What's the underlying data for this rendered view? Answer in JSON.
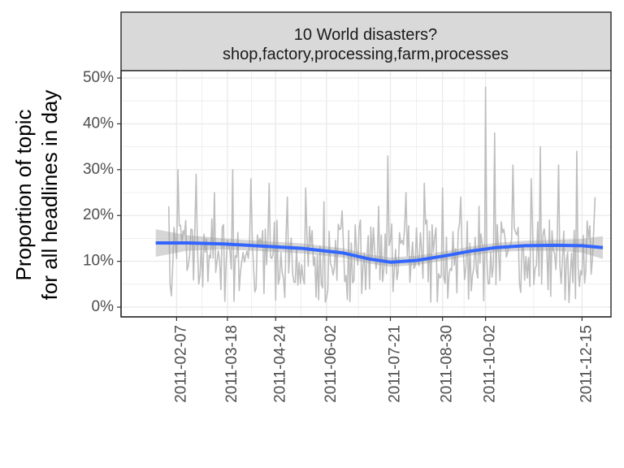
{
  "chart_data": {
    "type": "line",
    "facet_title_line1": "10 World disasters?",
    "facet_title_line2": "shop,factory,processing,farm,processes",
    "ylabel_line1": "Proportion of topic",
    "ylabel_line2": "for all headlines in day",
    "xlabel": "",
    "ylim": [
      0,
      0.5
    ],
    "y_ticks": [
      0,
      0.1,
      0.2,
      0.3,
      0.4,
      0.5
    ],
    "y_tick_labels": [
      "0%",
      "10%",
      "20%",
      "30%",
      "40%",
      "50%"
    ],
    "x_range": [
      "2011-01-01",
      "2011-12-31"
    ],
    "x_ticks": [
      "2011-02-07",
      "2011-03-18",
      "2011-04-24",
      "2011-06-02",
      "2011-07-21",
      "2011-08-30",
      "2011-10-02",
      "2011-12-15"
    ],
    "grid": true,
    "legend": "none",
    "colors": {
      "raw_series": "#bebebe",
      "smooth_line": "#3366ff",
      "ribbon": "#999999",
      "strip_fill": "#d9d9d9",
      "grid": "#ebebeb"
    },
    "series": [
      {
        "role": "raw",
        "x": [
          "2011-02-01",
          "2011-02-08",
          "2011-02-15",
          "2011-02-22",
          "2011-03-01",
          "2011-03-08",
          "2011-03-15",
          "2011-03-22",
          "2011-03-29",
          "2011-04-05",
          "2011-04-12",
          "2011-04-19",
          "2011-04-26",
          "2011-05-03",
          "2011-05-10",
          "2011-05-17",
          "2011-05-24",
          "2011-05-31",
          "2011-06-07",
          "2011-06-14",
          "2011-06-21",
          "2011-06-28",
          "2011-07-05",
          "2011-07-12",
          "2011-07-19",
          "2011-07-26",
          "2011-08-02",
          "2011-08-09",
          "2011-08-16",
          "2011-08-23",
          "2011-08-30",
          "2011-09-06",
          "2011-09-13",
          "2011-09-20",
          "2011-09-27",
          "2011-10-02",
          "2011-10-09",
          "2011-10-16",
          "2011-10-23",
          "2011-10-30",
          "2011-11-06",
          "2011-11-13",
          "2011-11-20",
          "2011-11-27",
          "2011-12-04",
          "2011-12-11",
          "2011-12-18",
          "2011-12-25"
        ],
        "y": [
          0.22,
          0.3,
          0.08,
          0.29,
          0.12,
          0.25,
          0.18,
          0.3,
          0.1,
          0.28,
          0.15,
          0.27,
          0.05,
          0.24,
          0.13,
          0.26,
          0.11,
          0.23,
          0.07,
          0.21,
          0.14,
          0.19,
          0.04,
          0.22,
          0.33,
          0.06,
          0.25,
          0.09,
          0.27,
          0.12,
          0.26,
          0.08,
          0.24,
          0.14,
          0.22,
          0.48,
          0.38,
          0.17,
          0.31,
          0.13,
          0.28,
          0.35,
          0.19,
          0.31,
          0.12,
          0.34,
          0.08,
          0.24
        ]
      },
      {
        "role": "smooth",
        "x": [
          "2011-01-22",
          "2011-02-15",
          "2011-03-15",
          "2011-04-15",
          "2011-05-15",
          "2011-06-15",
          "2011-07-05",
          "2011-07-21",
          "2011-08-10",
          "2011-09-01",
          "2011-09-20",
          "2011-10-10",
          "2011-11-01",
          "2011-11-25",
          "2011-12-15",
          "2011-12-31"
        ],
        "y": [
          0.14,
          0.14,
          0.138,
          0.133,
          0.128,
          0.118,
          0.105,
          0.098,
          0.102,
          0.112,
          0.122,
          0.13,
          0.134,
          0.135,
          0.134,
          0.13
        ],
        "ci_low": [
          0.11,
          0.123,
          0.126,
          0.122,
          0.117,
          0.108,
          0.095,
          0.088,
          0.092,
          0.102,
          0.112,
          0.12,
          0.123,
          0.123,
          0.119,
          0.105
        ],
        "ci_high": [
          0.17,
          0.157,
          0.15,
          0.144,
          0.139,
          0.128,
          0.115,
          0.108,
          0.112,
          0.122,
          0.132,
          0.14,
          0.145,
          0.147,
          0.149,
          0.155
        ]
      }
    ]
  }
}
